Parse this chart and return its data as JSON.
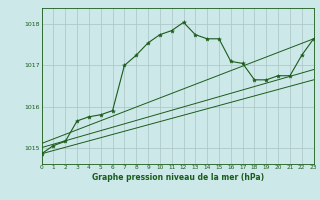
{
  "background_color": "#cce8e8",
  "grid_color": "#b0c8c8",
  "line_color": "#1a5c1a",
  "title": "Graphe pression niveau de la mer (hPa)",
  "xlim": [
    0,
    23
  ],
  "ylim": [
    1014.6,
    1018.4
  ],
  "yticks": [
    1015,
    1016,
    1017,
    1018
  ],
  "xticks": [
    0,
    1,
    2,
    3,
    4,
    5,
    6,
    7,
    8,
    9,
    10,
    11,
    12,
    13,
    14,
    15,
    16,
    17,
    18,
    19,
    20,
    21,
    22,
    23
  ],
  "main_x": [
    0,
    1,
    2,
    3,
    4,
    5,
    6,
    7,
    8,
    9,
    10,
    11,
    12,
    13,
    14,
    15,
    16,
    17,
    18,
    19,
    20,
    21,
    22,
    23
  ],
  "main_y": [
    1014.85,
    1015.05,
    1015.15,
    1015.65,
    1015.75,
    1015.8,
    1015.9,
    1017.0,
    1017.25,
    1017.55,
    1017.75,
    1017.85,
    1018.05,
    1017.75,
    1017.65,
    1017.65,
    1017.1,
    1017.05,
    1016.65,
    1016.65,
    1016.75,
    1016.75,
    1017.25,
    1017.65
  ],
  "trend1_x": [
    0,
    23
  ],
  "trend1_y": [
    1014.85,
    1016.65
  ],
  "trend2_x": [
    0,
    23
  ],
  "trend2_y": [
    1015.0,
    1016.9
  ],
  "trend3_x": [
    0,
    23
  ],
  "trend3_y": [
    1015.1,
    1017.65
  ]
}
